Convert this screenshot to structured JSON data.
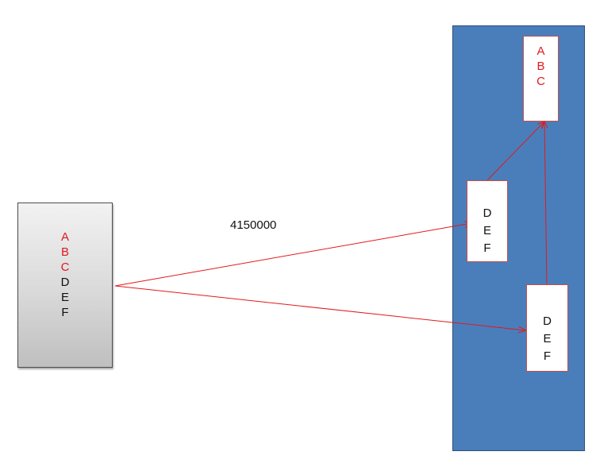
{
  "diagram": {
    "edge_label": "4150000",
    "source": {
      "letters": [
        {
          "text": "A",
          "color": "#e3191c"
        },
        {
          "text": "B",
          "color": "#e3191c"
        },
        {
          "text": "C",
          "color": "#e3191c"
        },
        {
          "text": "D",
          "color": "#111111"
        },
        {
          "text": "E",
          "color": "#111111"
        },
        {
          "text": "F",
          "color": "#111111"
        }
      ]
    },
    "container": {
      "color": "#4a7ebb",
      "box_abc": {
        "letters": [
          "A",
          "B",
          "C"
        ],
        "color": "#e3191c"
      },
      "box_def_1": {
        "letters": [
          "D",
          "E",
          "F"
        ],
        "color": "#111111"
      },
      "box_def_2": {
        "letters": [
          "D",
          "E",
          "F"
        ],
        "color": "#111111"
      }
    },
    "arrow_color": "#e3191c"
  }
}
